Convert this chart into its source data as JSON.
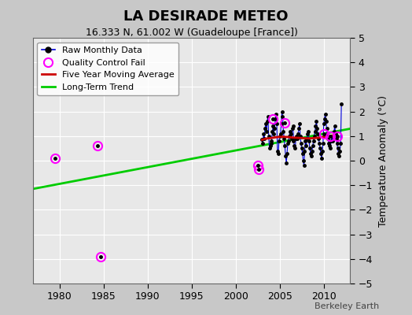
{
  "title": "LA DESIRADE METEO",
  "subtitle": "16.333 N, 61.002 W (Guadeloupe [France])",
  "ylabel": "Temperature Anomaly (°C)",
  "watermark": "Berkeley Earth",
  "xlim": [
    1977,
    2013
  ],
  "ylim": [
    -5,
    5
  ],
  "yticks": [
    -5,
    -4,
    -3,
    -2,
    -1,
    0,
    1,
    2,
    3,
    4,
    5
  ],
  "xticks": [
    1980,
    1985,
    1990,
    1995,
    2000,
    2005,
    2010
  ],
  "fig_bg_color": "#c8c8c8",
  "plot_bg_color": "#e8e8e8",
  "raw_data_x": [
    2003.0,
    2003.083,
    2003.167,
    2003.25,
    2003.333,
    2003.417,
    2003.5,
    2003.583,
    2003.667,
    2003.75,
    2003.833,
    2003.917,
    2004.0,
    2004.083,
    2004.167,
    2004.25,
    2004.333,
    2004.417,
    2004.5,
    2004.583,
    2004.667,
    2004.75,
    2004.833,
    2004.917,
    2005.0,
    2005.083,
    2005.167,
    2005.25,
    2005.333,
    2005.417,
    2005.5,
    2005.583,
    2005.667,
    2005.75,
    2005.833,
    2005.917,
    2006.0,
    2006.083,
    2006.167,
    2006.25,
    2006.333,
    2006.417,
    2006.5,
    2006.583,
    2006.667,
    2006.75,
    2006.833,
    2006.917,
    2007.0,
    2007.083,
    2007.167,
    2007.25,
    2007.333,
    2007.417,
    2007.5,
    2007.583,
    2007.667,
    2007.75,
    2007.833,
    2007.917,
    2008.0,
    2008.083,
    2008.167,
    2008.25,
    2008.333,
    2008.417,
    2008.5,
    2008.583,
    2008.667,
    2008.75,
    2008.833,
    2008.917,
    2009.0,
    2009.083,
    2009.167,
    2009.25,
    2009.333,
    2009.417,
    2009.5,
    2009.583,
    2009.667,
    2009.75,
    2009.833,
    2009.917,
    2010.0,
    2010.083,
    2010.167,
    2010.25,
    2010.333,
    2010.417,
    2010.5,
    2010.583,
    2010.667,
    2010.75,
    2010.833,
    2010.917,
    2011.0,
    2011.083,
    2011.167,
    2011.25,
    2011.333,
    2011.417,
    2011.5,
    2011.583,
    2011.667,
    2011.75,
    2011.833,
    2011.917,
    2012.0
  ],
  "raw_data_y": [
    0.85,
    0.7,
    1.1,
    0.9,
    1.3,
    1.5,
    1.2,
    1.6,
    1.8,
    1.0,
    0.5,
    0.6,
    0.7,
    0.8,
    1.2,
    1.4,
    1.1,
    1.3,
    1.7,
    1.9,
    1.5,
    0.4,
    0.3,
    0.8,
    1.0,
    1.1,
    1.5,
    2.0,
    1.8,
    1.2,
    0.9,
    0.6,
    0.2,
    -0.1,
    0.3,
    0.7,
    0.8,
    1.0,
    1.2,
    1.1,
    0.9,
    1.3,
    1.4,
    0.8,
    0.6,
    0.5,
    0.9,
    1.0,
    0.9,
    1.1,
    1.3,
    1.5,
    1.0,
    0.7,
    0.5,
    0.3,
    0.0,
    -0.2,
    0.4,
    0.8,
    0.6,
    0.9,
    1.1,
    1.2,
    0.8,
    0.5,
    0.3,
    0.2,
    0.4,
    0.6,
    0.8,
    1.0,
    1.2,
    1.4,
    1.6,
    1.3,
    1.1,
    0.9,
    0.7,
    0.5,
    0.3,
    0.1,
    0.4,
    0.7,
    1.5,
    1.7,
    1.9,
    1.6,
    1.3,
    1.1,
    0.9,
    0.7,
    0.6,
    0.5,
    0.8,
    1.0,
    0.8,
    1.0,
    1.2,
    1.4,
    1.1,
    0.9,
    0.7,
    0.5,
    0.3,
    0.2,
    0.4,
    0.7,
    2.3
  ],
  "qc_fail_x": [
    1979.5,
    1984.3,
    1984.7,
    2002.5,
    2002.6,
    2004.25,
    2005.583,
    2010.0,
    2010.75,
    2011.5
  ],
  "qc_fail_y": [
    0.1,
    0.6,
    -3.9,
    -0.2,
    -0.35,
    1.7,
    1.55,
    1.1,
    1.0,
    1.0
  ],
  "five_yr_avg_x": [
    2003.0,
    2003.5,
    2004.0,
    2004.5,
    2005.0,
    2005.5,
    2006.0,
    2006.5,
    2007.0,
    2007.5,
    2008.0,
    2008.5,
    2009.0,
    2009.5,
    2010.0,
    2010.5,
    2011.0
  ],
  "five_yr_avg_y": [
    0.85,
    0.9,
    0.92,
    0.95,
    0.97,
    0.97,
    0.96,
    0.94,
    0.93,
    0.92,
    0.91,
    0.91,
    0.92,
    0.94,
    0.97,
    1.0,
    1.02
  ],
  "trend_x": [
    1977,
    2013
  ],
  "trend_y": [
    -1.15,
    1.3
  ],
  "raw_line_color": "#0000dd",
  "raw_marker_color": "#000000",
  "qc_color": "#ff00ff",
  "five_yr_color": "#cc0000",
  "trend_color": "#00cc00",
  "legend_loc": "upper left"
}
